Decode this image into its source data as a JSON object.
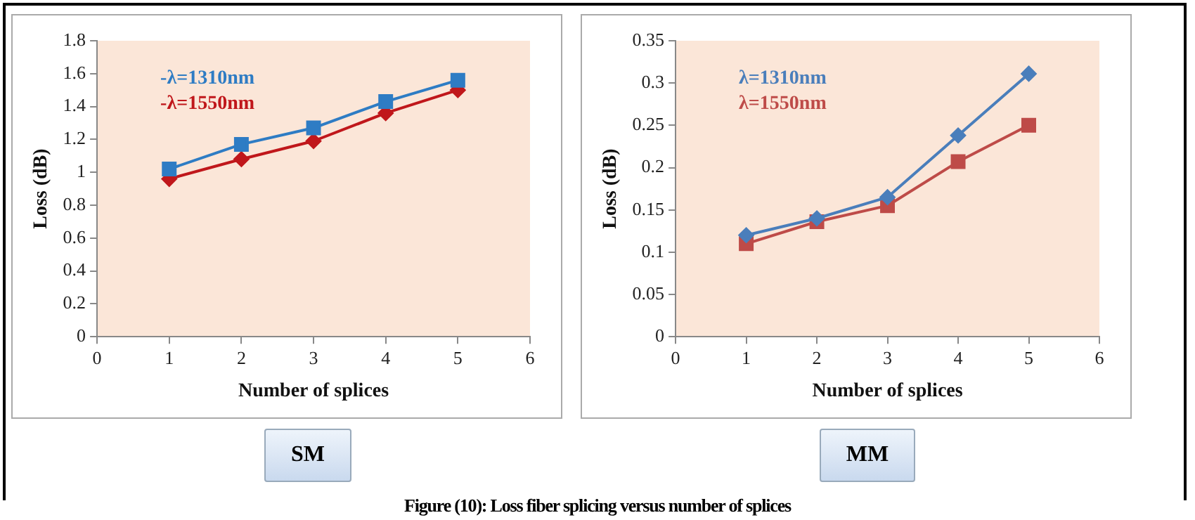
{
  "chart_data": [
    {
      "type": "line",
      "xlabel": "Number of splices",
      "ylabel": "Loss (dB)",
      "x": [
        1,
        2,
        3,
        4,
        5
      ],
      "xlim": [
        0,
        6
      ],
      "xticks": [
        0,
        1,
        2,
        3,
        4,
        5,
        6
      ],
      "ylim": [
        0,
        1.8
      ],
      "yticks": [
        0,
        0.2,
        0.4,
        0.6,
        0.8,
        1,
        1.2,
        1.4,
        1.6,
        1.8
      ],
      "grid": false,
      "legend": "top left",
      "line_style": "solid",
      "annotations": [
        "SM"
      ],
      "series": [
        {
          "name": "-λ=1310nm",
          "color": "#2e7cc4",
          "marker": "square",
          "values": [
            1.02,
            1.17,
            1.27,
            1.43,
            1.56
          ]
        },
        {
          "name": "-λ=1550nm",
          "color": "#c0171b",
          "marker": "diamond",
          "values": [
            0.96,
            1.08,
            1.19,
            1.36,
            1.5
          ]
        }
      ]
    },
    {
      "type": "line",
      "xlabel": "Number of splices",
      "ylabel": "Loss (dB)",
      "x": [
        1,
        2,
        3,
        4,
        5
      ],
      "xlim": [
        0,
        6
      ],
      "xticks": [
        0,
        1,
        2,
        3,
        4,
        5,
        6
      ],
      "ylim": [
        0,
        0.35
      ],
      "yticks": [
        0,
        0.05,
        0.1,
        0.15,
        0.2,
        0.25,
        0.3,
        0.35
      ],
      "grid": false,
      "legend": "top left",
      "line_style": "solid",
      "annotations": [
        "MM",
        "Figure (10): Loss fiber splicing versus number of splices"
      ],
      "series": [
        {
          "name": "λ=1310nm",
          "color": "#4a7ebb",
          "marker": "diamond",
          "values": [
            0.12,
            0.14,
            0.165,
            0.238,
            0.311
          ]
        },
        {
          "name": "λ=1550nm",
          "color": "#be4b48",
          "marker": "square",
          "values": [
            0.11,
            0.136,
            0.155,
            0.207,
            0.25
          ]
        }
      ]
    }
  ]
}
